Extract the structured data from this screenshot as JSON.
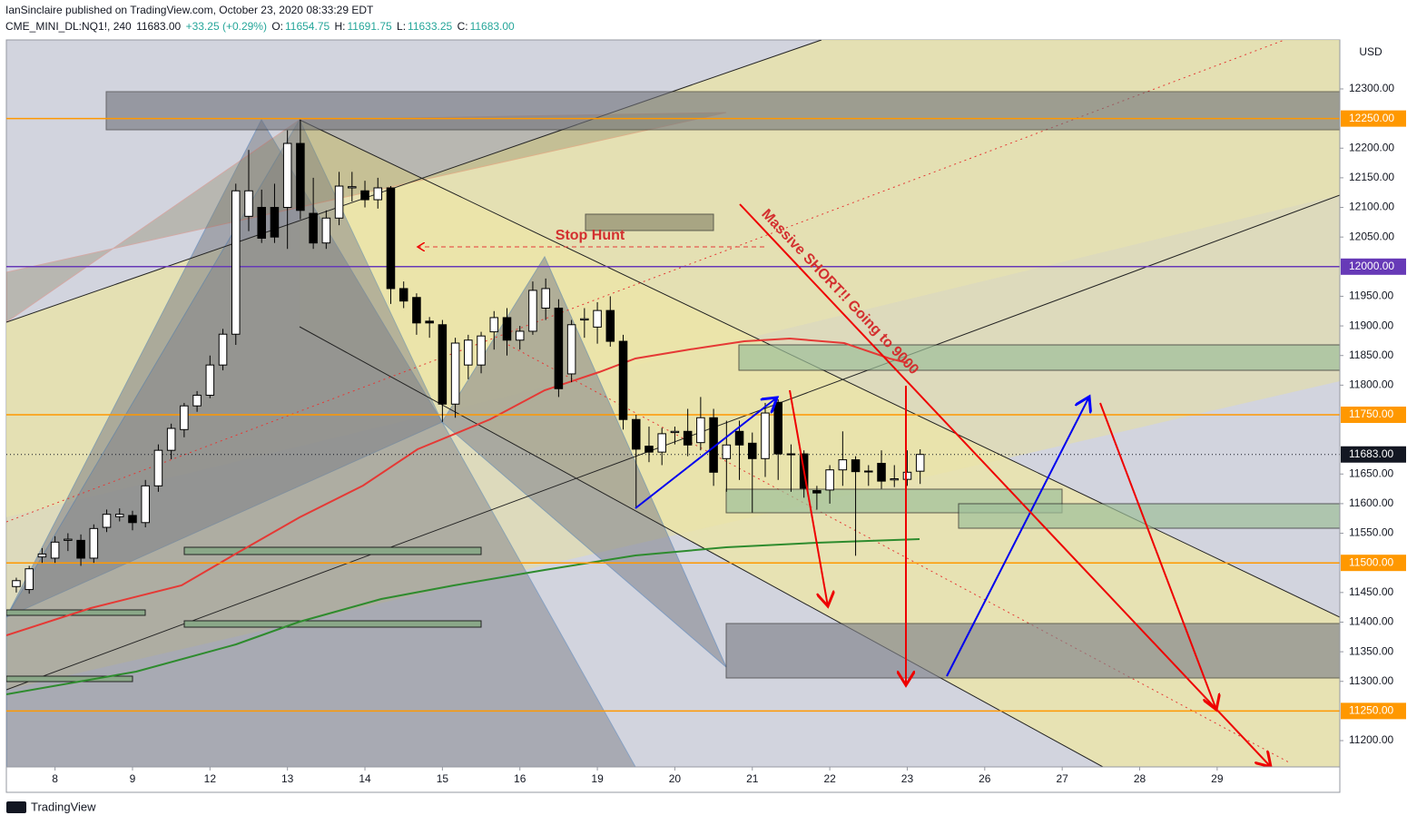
{
  "header": {
    "published": "IanSinclaire published on TradingView.com, October 23, 2020 08:33:29 EDT",
    "symbol": "CME_MINI_DL:NQ1!, 240",
    "last": "11683.00",
    "change": "+33.25 (+0.29%)",
    "o_label": "O:",
    "o": "11654.75",
    "h_label": "H:",
    "h": "11691.75",
    "l_label": "L:",
    "l": "11633.25",
    "c_label": "C:",
    "c": "11683.00"
  },
  "chart_data": {
    "type": "candlestick",
    "currency": "USD",
    "annotations": [
      "Stop Hunt",
      "Massive SHORT!! Going to 9000"
    ],
    "xlim": [
      -0.77,
      102.5
    ],
    "xticks": [
      {
        "value": 3,
        "label": "8"
      },
      {
        "value": 9,
        "label": "9"
      },
      {
        "value": 15,
        "label": "12"
      },
      {
        "value": 21,
        "label": "13"
      },
      {
        "value": 27,
        "label": "14"
      },
      {
        "value": 33,
        "label": "15"
      },
      {
        "value": 39,
        "label": "16"
      },
      {
        "value": 45,
        "label": "19"
      },
      {
        "value": 51,
        "label": "20"
      },
      {
        "value": 57,
        "label": "21"
      },
      {
        "value": 63,
        "label": "22"
      },
      {
        "value": 69,
        "label": "23"
      },
      {
        "value": 75,
        "label": "26"
      },
      {
        "value": 81,
        "label": "27"
      },
      {
        "value": 87,
        "label": "28"
      },
      {
        "value": 93,
        "label": "29"
      }
    ],
    "ylim": [
      11155.6,
      12382.7
    ],
    "yticks": [
      {
        "value": 11200,
        "label": "11200.00"
      },
      {
        "value": 11300,
        "label": "11300.00"
      },
      {
        "value": 11350,
        "label": "11350.00"
      },
      {
        "value": 11400,
        "label": "11400.00"
      },
      {
        "value": 11450,
        "label": "11450.00"
      },
      {
        "value": 11550,
        "label": "11550.00"
      },
      {
        "value": 11600,
        "label": "11600.00"
      },
      {
        "value": 11650,
        "label": "11650.00"
      },
      {
        "value": 11800,
        "label": "11800.00"
      },
      {
        "value": 11850,
        "label": "11850.00"
      },
      {
        "value": 11900,
        "label": "11900.00"
      },
      {
        "value": 11950,
        "label": "11950.00"
      },
      {
        "value": 12050,
        "label": "12050.00"
      },
      {
        "value": 12100,
        "label": "12100.00"
      },
      {
        "value": 12150,
        "label": "12150.00"
      },
      {
        "value": 12200,
        "label": "12200.00"
      },
      {
        "value": 12300,
        "label": "12300.00"
      }
    ],
    "price_lines": [
      {
        "value": 12250,
        "label": "12250.00",
        "color": "#ff9800"
      },
      {
        "value": 12000,
        "label": "12000.00",
        "color": "#673ab7"
      },
      {
        "value": 11750,
        "label": "11750.00",
        "color": "#ff9800"
      },
      {
        "value": 11500,
        "label": "11500.00",
        "color": "#ff9800"
      },
      {
        "value": 11250,
        "label": "11250.00",
        "color": "#ff9800"
      }
    ],
    "last_price": {
      "value": 11683,
      "label": "11683.00",
      "color": "#131722"
    },
    "up_color": "#ffffff",
    "down_color": "#000000",
    "open": [
      11460,
      11455,
      11510,
      11508,
      11538,
      11538,
      11508,
      11560,
      11578,
      11580,
      11568,
      11630,
      11690,
      11725,
      11765,
      11783,
      11834,
      11886,
      12085,
      12100,
      12100,
      12100,
      12208,
      12090,
      12040,
      12082,
      12133,
      12128,
      12113,
      12133,
      11963,
      11948,
      11908,
      11902,
      11768,
      11834,
      11834,
      11890,
      11914,
      11876,
      11891,
      11930,
      11930,
      11819,
      11910,
      11898,
      11926,
      11874,
      11742,
      11697,
      11687,
      11720,
      11722,
      11703,
      11745,
      11676,
      11722,
      11702,
      11676,
      11771,
      11684,
      11684,
      11622,
      11623,
      11657,
      11674,
      11655,
      11668,
      11640,
      11641,
      11654.75
    ],
    "high": [
      11475,
      11495,
      11525,
      11545,
      11550,
      11548,
      11565,
      11590,
      11592,
      11588,
      11640,
      11700,
      11735,
      11770,
      11790,
      11850,
      11895,
      12140,
      12197,
      12130,
      12140,
      12230,
      12248,
      12150,
      12095,
      12160,
      12160,
      12145,
      12150,
      12136,
      11975,
      11955,
      11915,
      11910,
      11880,
      11885,
      11890,
      11925,
      11930,
      11900,
      11975,
      11980,
      11945,
      11910,
      11930,
      11940,
      11950,
      11885,
      11750,
      11730,
      11728,
      11730,
      11760,
      11780,
      11760,
      11740,
      11740,
      11720,
      11770,
      11776,
      11700,
      11690,
      11630,
      11665,
      11722,
      11680,
      11665,
      11690,
      11665,
      11690,
      11691.75
    ],
    "low": [
      11450,
      11448,
      11500,
      11500,
      11520,
      11495,
      11500,
      11552,
      11570,
      11555,
      11560,
      11620,
      11675,
      11712,
      11755,
      11778,
      11825,
      11868,
      12060,
      12040,
      12040,
      12030,
      12080,
      12030,
      12030,
      12070,
      12110,
      12100,
      12098,
      11937,
      11930,
      11885,
      11880,
      11738,
      11745,
      11810,
      11820,
      11860,
      11850,
      11860,
      11885,
      11910,
      11780,
      11805,
      11880,
      11870,
      11865,
      11725,
      11592,
      11670,
      11665,
      11700,
      11680,
      11690,
      11630,
      11620,
      11640,
      11585,
      11645,
      11640,
      11620,
      11610,
      11590,
      11600,
      11630,
      11512,
      11630,
      11625,
      11628,
      11630,
      11633.25
    ],
    "close": [
      11470,
      11490,
      11515,
      11535,
      11540,
      11508,
      11558,
      11582,
      11582,
      11568,
      11630,
      11690,
      11727,
      11765,
      11783,
      11834,
      11886,
      12128,
      12128,
      12048,
      12050,
      12208,
      12095,
      12040,
      12082,
      12136,
      12135,
      12113,
      12133,
      11963,
      11942,
      11905,
      11905,
      11768,
      11871,
      11876,
      11883,
      11914,
      11876,
      11891,
      11960,
      11963,
      11794,
      11902,
      11912,
      11926,
      11874,
      11742,
      11692,
      11687,
      11718,
      11722,
      11699,
      11745,
      11653,
      11699,
      11699,
      11676,
      11753,
      11684,
      11683,
      11626,
      11618,
      11657,
      11674,
      11654,
      11655,
      11638,
      11642,
      11653,
      11683
    ]
  },
  "brand": "TradingView"
}
